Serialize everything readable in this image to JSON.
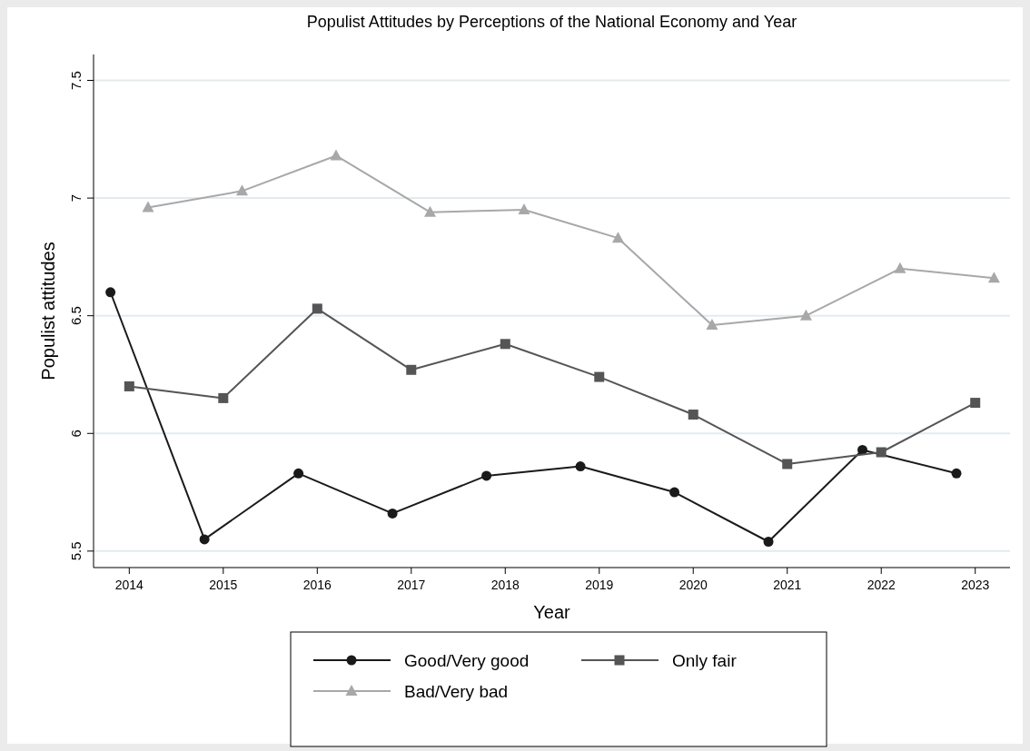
{
  "chart_data": {
    "type": "line",
    "title": "Populist Attitudes by Perceptions of the National Economy and Year",
    "xlabel": "Year",
    "ylabel": "Populist attitudes",
    "xlim": [
      2013.62,
      2023.37
    ],
    "xticks": [
      2014,
      2015,
      2016,
      2017,
      2018,
      2019,
      2020,
      2021,
      2022,
      2023
    ],
    "ylim": [
      5.43,
      7.61
    ],
    "yticks": [
      5.5,
      6,
      6.5,
      7,
      7.5
    ],
    "grid": "y",
    "legend": "bottom",
    "series": [
      {
        "name": "Good/Very good",
        "color": "#1a1a1a",
        "marker": "circle",
        "x": [
          2013.8,
          2014.8,
          2015.8,
          2016.8,
          2017.8,
          2018.8,
          2019.8,
          2020.8,
          2021.8,
          2022.8
        ],
        "values": [
          6.6,
          5.55,
          5.83,
          5.66,
          5.82,
          5.86,
          5.75,
          5.54,
          5.93,
          5.83
        ]
      },
      {
        "name": "Only fair",
        "color": "#555555",
        "marker": "square",
        "x": [
          2014,
          2015,
          2016,
          2017,
          2018,
          2019,
          2020,
          2021,
          2022,
          2023
        ],
        "values": [
          6.2,
          6.15,
          6.53,
          6.27,
          6.38,
          6.24,
          6.08,
          5.87,
          5.92,
          6.13
        ]
      },
      {
        "name": "Bad/Very bad",
        "color": "#a8a8a8",
        "marker": "triangle",
        "x": [
          2014.2,
          2015.2,
          2016.2,
          2017.2,
          2018.2,
          2019.2,
          2020.2,
          2021.2,
          2022.2,
          2023.2
        ],
        "values": [
          6.96,
          7.03,
          7.18,
          6.94,
          6.95,
          6.83,
          6.46,
          6.5,
          6.7,
          6.66
        ]
      }
    ]
  }
}
